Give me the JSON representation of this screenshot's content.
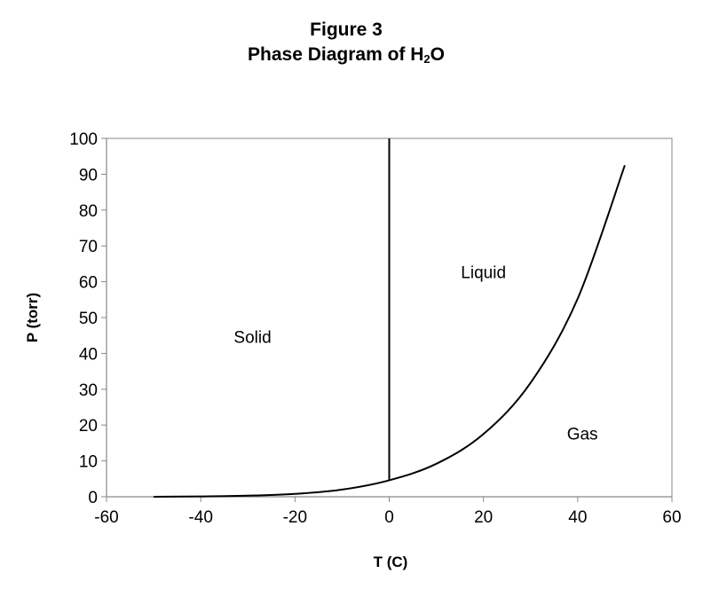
{
  "title": {
    "line1": "Figure 3",
    "line2_prefix": "Phase Diagram of H",
    "line2_subscript": "2",
    "line2_suffix": "O"
  },
  "chart_data": {
    "type": "line",
    "xlabel": "T (C)",
    "ylabel": "P (torr)",
    "xlim": [
      -60,
      60
    ],
    "ylim": [
      0,
      100
    ],
    "x_ticks": [
      -60,
      -40,
      -20,
      0,
      20,
      40,
      60
    ],
    "y_ticks": [
      0,
      10,
      20,
      30,
      40,
      50,
      60,
      70,
      80,
      90,
      100
    ],
    "grid": false,
    "series": [
      {
        "x": [
          -50,
          -40,
          -30,
          -20,
          -10,
          0,
          10,
          20,
          30,
          40,
          50
        ],
        "y": [
          0.0,
          0.1,
          0.3,
          0.8,
          2.0,
          4.6,
          9.2,
          17.5,
          31.8,
          55.3,
          92.5
        ]
      },
      {
        "x": [
          0,
          0
        ],
        "y": [
          4.6,
          100
        ]
      }
    ],
    "annotations": [
      {
        "text": "Solid",
        "x": -29,
        "y": 43
      },
      {
        "text": "Liquid",
        "x": 20,
        "y": 61
      },
      {
        "text": "Gas",
        "x": 41,
        "y": 16
      }
    ]
  }
}
